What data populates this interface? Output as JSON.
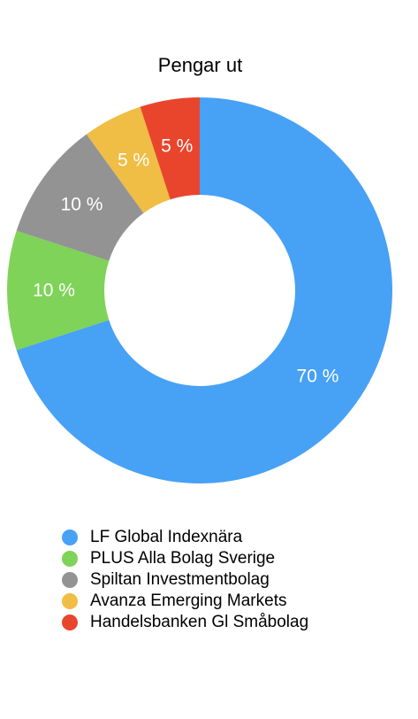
{
  "chart_data": {
    "type": "pie",
    "title": "Pengar ut",
    "categories": [
      "LF Global Indexnära",
      "PLUS Alla Bolag Sverige",
      "Spiltan Investmentbolag",
      "Avanza Emerging Markets",
      "Handelsbanken Gl Småbolag"
    ],
    "values": [
      70,
      10,
      10,
      5,
      5
    ],
    "labels": [
      "70 %",
      "10 %",
      "10 %",
      "5 %",
      "5 %"
    ],
    "colors": [
      "#47a1f5",
      "#7ed358",
      "#939393",
      "#f0bd45",
      "#e9452d"
    ],
    "donut": true,
    "legend_position": "bottom-left"
  }
}
